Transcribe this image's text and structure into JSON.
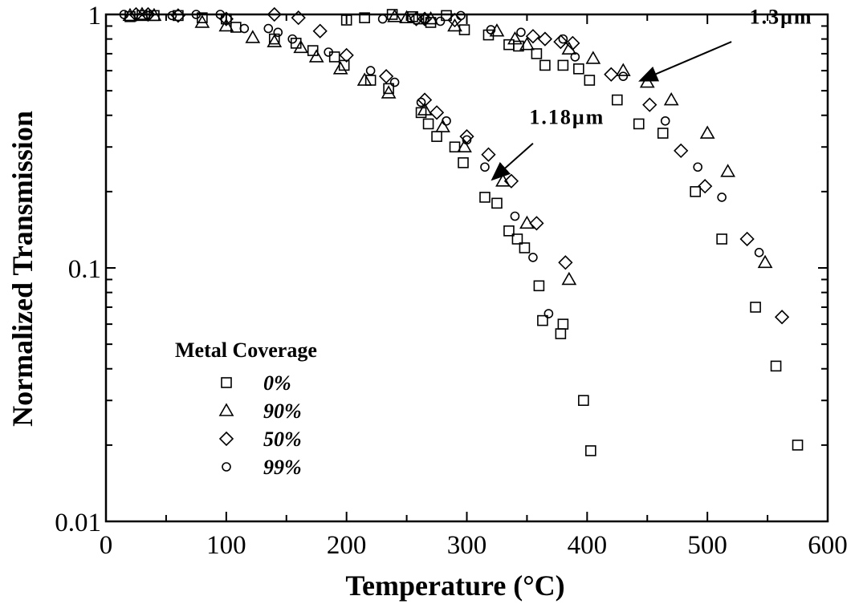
{
  "chart_data": {
    "type": "scatter",
    "title": "",
    "xlabel": "Temperature (°C)",
    "ylabel": "Normalized Transmission",
    "xlim": [
      0,
      600
    ],
    "ylim": [
      0.01,
      1
    ],
    "yscale": "log",
    "grid": false,
    "legend_placement": "bottom-left",
    "x_ticks": [
      0,
      100,
      200,
      300,
      400,
      500,
      600
    ],
    "x_tick_labels": [
      "0",
      "100",
      "200",
      "300",
      "400",
      "500",
      "600"
    ],
    "y_ticks": [
      0.01,
      0.1,
      1
    ],
    "y_tick_labels": [
      "0.01",
      "0.1",
      "1"
    ],
    "legend_title": "Metal  Coverage",
    "annotations": [
      {
        "text": "1.3μm",
        "text_at": [
          535,
          0.92
        ],
        "arrow_from": [
          520,
          0.78
        ],
        "arrow_to": [
          445,
          0.55
        ]
      },
      {
        "text": "1.18μm",
        "text_at": [
          352,
          0.37
        ],
        "arrow_from": [
          355,
          0.31
        ],
        "arrow_to": [
          322,
          0.225
        ]
      }
    ],
    "series": [
      {
        "name": "0%",
        "marker": "square",
        "points": [
          [
            20,
            0.98
          ],
          [
            30,
            0.99
          ],
          [
            40,
            0.99
          ],
          [
            60,
            0.99
          ],
          [
            80,
            0.97
          ],
          [
            100,
            0.96
          ],
          [
            108,
            0.89
          ],
          [
            140,
            0.8
          ],
          [
            158,
            0.77
          ],
          [
            172,
            0.72
          ],
          [
            190,
            0.68
          ],
          [
            198,
            0.63
          ],
          [
            220,
            0.55
          ],
          [
            235,
            0.51
          ],
          [
            200,
            0.95
          ],
          [
            215,
            0.97
          ],
          [
            238,
            1.0
          ],
          [
            255,
            0.98
          ],
          [
            260,
            0.96
          ],
          [
            270,
            0.93
          ],
          [
            283,
            0.99
          ],
          [
            298,
            0.87
          ],
          [
            262,
            0.41
          ],
          [
            268,
            0.37
          ],
          [
            275,
            0.33
          ],
          [
            290,
            0.3
          ],
          [
            297,
            0.26
          ],
          [
            315,
            0.19
          ],
          [
            325,
            0.18
          ],
          [
            335,
            0.14
          ],
          [
            342,
            0.13
          ],
          [
            348,
            0.12
          ],
          [
            360,
            0.085
          ],
          [
            363,
            0.062
          ],
          [
            380,
            0.06
          ],
          [
            378,
            0.055
          ],
          [
            318,
            0.83
          ],
          [
            335,
            0.76
          ],
          [
            343,
            0.75
          ],
          [
            358,
            0.7
          ],
          [
            365,
            0.63
          ],
          [
            380,
            0.63
          ],
          [
            393,
            0.61
          ],
          [
            402,
            0.55
          ],
          [
            425,
            0.46
          ],
          [
            443,
            0.37
          ],
          [
            463,
            0.34
          ],
          [
            490,
            0.2
          ],
          [
            512,
            0.13
          ],
          [
            540,
            0.07
          ],
          [
            557,
            0.041
          ],
          [
            575,
            0.02
          ],
          [
            397,
            0.03
          ],
          [
            403,
            0.019
          ]
        ]
      },
      {
        "name": "90%",
        "marker": "triangle",
        "points": [
          [
            20,
            0.99
          ],
          [
            30,
            1.0
          ],
          [
            40,
            0.99
          ],
          [
            80,
            0.93
          ],
          [
            100,
            0.9
          ],
          [
            122,
            0.81
          ],
          [
            140,
            0.78
          ],
          [
            162,
            0.74
          ],
          [
            175,
            0.68
          ],
          [
            195,
            0.61
          ],
          [
            215,
            0.55
          ],
          [
            235,
            0.49
          ],
          [
            240,
            0.98
          ],
          [
            265,
            0.42
          ],
          [
            280,
            0.36
          ],
          [
            298,
            0.3
          ],
          [
            330,
            0.22
          ],
          [
            350,
            0.15
          ],
          [
            385,
            0.09
          ],
          [
            250,
            0.97
          ],
          [
            270,
            0.96
          ],
          [
            290,
            0.9
          ],
          [
            325,
            0.86
          ],
          [
            340,
            0.8
          ],
          [
            350,
            0.76
          ],
          [
            385,
            0.73
          ],
          [
            405,
            0.67
          ],
          [
            430,
            0.6
          ],
          [
            450,
            0.54
          ],
          [
            470,
            0.46
          ],
          [
            500,
            0.34
          ],
          [
            517,
            0.24
          ],
          [
            548,
            0.105
          ]
        ]
      },
      {
        "name": "50%",
        "marker": "diamond",
        "points": [
          [
            25,
            1.0
          ],
          [
            35,
            1.0
          ],
          [
            60,
            0.99
          ],
          [
            100,
            0.96
          ],
          [
            140,
            1.0
          ],
          [
            160,
            0.97
          ],
          [
            178,
            0.86
          ],
          [
            200,
            0.69
          ],
          [
            233,
            0.57
          ],
          [
            265,
            0.46
          ],
          [
            275,
            0.41
          ],
          [
            300,
            0.33
          ],
          [
            318,
            0.28
          ],
          [
            337,
            0.22
          ],
          [
            358,
            0.15
          ],
          [
            382,
            0.105
          ],
          [
            258,
            0.96
          ],
          [
            265,
            0.96
          ],
          [
            290,
            0.95
          ],
          [
            355,
            0.82
          ],
          [
            365,
            0.8
          ],
          [
            378,
            0.78
          ],
          [
            388,
            0.77
          ],
          [
            420,
            0.58
          ],
          [
            452,
            0.44
          ],
          [
            478,
            0.29
          ],
          [
            498,
            0.21
          ],
          [
            533,
            0.13
          ],
          [
            562,
            0.064
          ]
        ]
      },
      {
        "name": "99%",
        "marker": "circle",
        "points": [
          [
            15,
            1.0
          ],
          [
            35,
            0.99
          ],
          [
            55,
            0.99
          ],
          [
            75,
            1.0
          ],
          [
            95,
            1.0
          ],
          [
            115,
            0.88
          ],
          [
            135,
            0.88
          ],
          [
            143,
            0.85
          ],
          [
            155,
            0.8
          ],
          [
            185,
            0.71
          ],
          [
            220,
            0.6
          ],
          [
            240,
            0.54
          ],
          [
            262,
            0.45
          ],
          [
            283,
            0.38
          ],
          [
            300,
            0.32
          ],
          [
            315,
            0.25
          ],
          [
            340,
            0.16
          ],
          [
            355,
            0.11
          ],
          [
            368,
            0.066
          ],
          [
            230,
            0.96
          ],
          [
            265,
            0.96
          ],
          [
            278,
            0.94
          ],
          [
            295,
            0.99
          ],
          [
            320,
            0.87
          ],
          [
            345,
            0.85
          ],
          [
            380,
            0.8
          ],
          [
            390,
            0.68
          ],
          [
            430,
            0.57
          ],
          [
            465,
            0.38
          ],
          [
            492,
            0.25
          ],
          [
            512,
            0.19
          ],
          [
            543,
            0.115
          ]
        ]
      }
    ]
  }
}
